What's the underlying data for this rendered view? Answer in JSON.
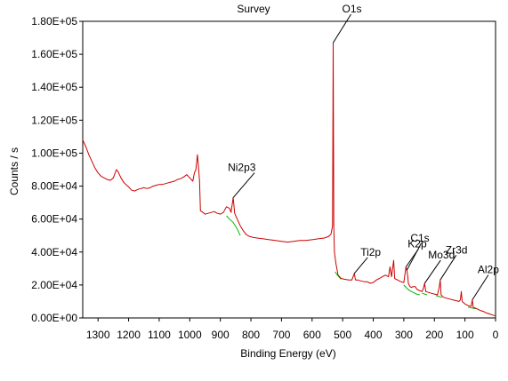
{
  "chart_data": {
    "type": "line",
    "title": "Survey",
    "xlabel": "Binding Energy (eV)",
    "ylabel": "Counts / s",
    "xlim": [
      1350,
      0
    ],
    "ylim": [
      0,
      180000
    ],
    "x_ticks": [
      1300,
      1200,
      1100,
      1000,
      900,
      800,
      700,
      600,
      500,
      400,
      300,
      200,
      100,
      0
    ],
    "x_tick_labels": [
      "1300",
      "1200",
      "1100",
      "1000",
      "900",
      "800",
      "700",
      "600",
      "500",
      "400",
      "300",
      "200",
      "100",
      "0"
    ],
    "y_ticks": [
      0,
      20000,
      40000,
      60000,
      80000,
      100000,
      120000,
      140000,
      160000,
      180000
    ],
    "y_tick_labels": [
      "0.00E+00",
      "2.00E+04",
      "4.00E+04",
      "6.00E+04",
      "8.00E+04",
      "1.00E+05",
      "1.20E+05",
      "1.40E+05",
      "1.60E+05",
      "1.80E+05"
    ],
    "grid": false,
    "colors": {
      "spectrum": "#cc0000",
      "background": "#00bb00"
    },
    "series": [
      {
        "points": [
          [
            1350,
            108000
          ],
          [
            1340,
            104000
          ],
          [
            1330,
            99000
          ],
          [
            1320,
            95000
          ],
          [
            1310,
            91000
          ],
          [
            1300,
            88000
          ],
          [
            1290,
            86000
          ],
          [
            1280,
            85000
          ],
          [
            1270,
            84000
          ],
          [
            1260,
            83500
          ],
          [
            1250,
            85000
          ],
          [
            1240,
            90000
          ],
          [
            1235,
            89000
          ],
          [
            1225,
            85000
          ],
          [
            1215,
            82000
          ],
          [
            1200,
            79500
          ],
          [
            1190,
            77500
          ],
          [
            1180,
            77000
          ],
          [
            1170,
            78000
          ],
          [
            1160,
            78500
          ],
          [
            1150,
            79000
          ],
          [
            1140,
            78500
          ],
          [
            1130,
            79000
          ],
          [
            1120,
            80000
          ],
          [
            1110,
            80500
          ],
          [
            1100,
            81000
          ],
          [
            1090,
            81000
          ],
          [
            1080,
            81500
          ],
          [
            1070,
            82000
          ],
          [
            1060,
            82500
          ],
          [
            1050,
            83000
          ],
          [
            1040,
            84000
          ],
          [
            1030,
            84500
          ],
          [
            1020,
            85500
          ],
          [
            1010,
            87000
          ],
          [
            1000,
            85000
          ],
          [
            990,
            83000
          ],
          [
            985,
            88000
          ],
          [
            980,
            90000
          ],
          [
            975,
            99000
          ],
          [
            972,
            93000
          ],
          [
            968,
            83000
          ],
          [
            965,
            65000
          ],
          [
            960,
            64500
          ],
          [
            950,
            63000
          ],
          [
            940,
            63500
          ],
          [
            930,
            64000
          ],
          [
            920,
            64500
          ],
          [
            910,
            63500
          ],
          [
            900,
            63000
          ],
          [
            890,
            64000
          ],
          [
            880,
            67500
          ],
          [
            870,
            66500
          ],
          [
            865,
            64000
          ],
          [
            858,
            73000
          ],
          [
            853,
            63500
          ],
          [
            845,
            60000
          ],
          [
            835,
            56000
          ],
          [
            825,
            53000
          ],
          [
            815,
            50500
          ],
          [
            805,
            49500
          ],
          [
            795,
            49000
          ],
          [
            780,
            48500
          ],
          [
            760,
            48000
          ],
          [
            740,
            47500
          ],
          [
            720,
            47000
          ],
          [
            700,
            46500
          ],
          [
            680,
            46000
          ],
          [
            660,
            46500
          ],
          [
            640,
            47000
          ],
          [
            620,
            47000
          ],
          [
            600,
            47500
          ],
          [
            580,
            48000
          ],
          [
            560,
            48500
          ],
          [
            545,
            49500
          ],
          [
            538,
            51000
          ],
          [
            533,
            56000
          ],
          [
            531,
            167000
          ],
          [
            529,
            55000
          ],
          [
            527,
            40000
          ],
          [
            522,
            33000
          ],
          [
            515,
            26000
          ],
          [
            505,
            24000
          ],
          [
            495,
            23500
          ],
          [
            480,
            23000
          ],
          [
            470,
            23000
          ],
          [
            462,
            27000
          ],
          [
            458,
            23000
          ],
          [
            450,
            23000
          ],
          [
            440,
            22500
          ],
          [
            430,
            22000
          ],
          [
            420,
            22000
          ],
          [
            410,
            21000
          ],
          [
            400,
            21500
          ],
          [
            390,
            23000
          ],
          [
            380,
            24000
          ],
          [
            370,
            25000
          ],
          [
            360,
            26000
          ],
          [
            350,
            25000
          ],
          [
            345,
            31000
          ],
          [
            340,
            25000
          ],
          [
            333,
            35000
          ],
          [
            330,
            24000
          ],
          [
            320,
            23000
          ],
          [
            310,
            22000
          ],
          [
            300,
            21500
          ],
          [
            293,
            31000
          ],
          [
            290,
            29000
          ],
          [
            287,
            25000
          ],
          [
            285,
            21000
          ],
          [
            280,
            19000
          ],
          [
            275,
            18500
          ],
          [
            270,
            19000
          ],
          [
            262,
            19000
          ],
          [
            258,
            17500
          ],
          [
            248,
            16500
          ],
          [
            240,
            16000
          ],
          [
            236,
            18000
          ],
          [
            232,
            21000
          ],
          [
            228,
            16000
          ],
          [
            220,
            15500
          ],
          [
            210,
            15000
          ],
          [
            200,
            14500
          ],
          [
            190,
            14000
          ],
          [
            184,
            19000
          ],
          [
            181,
            23000
          ],
          [
            178,
            14000
          ],
          [
            170,
            12500
          ],
          [
            160,
            12000
          ],
          [
            150,
            11500
          ],
          [
            140,
            11000
          ],
          [
            130,
            10500
          ],
          [
            120,
            10000
          ],
          [
            115,
            11000
          ],
          [
            112,
            16000
          ],
          [
            109,
            10000
          ],
          [
            100,
            8500
          ],
          [
            90,
            7500
          ],
          [
            80,
            7000
          ],
          [
            76,
            11000
          ],
          [
            73,
            6500
          ],
          [
            60,
            5500
          ],
          [
            50,
            4500
          ],
          [
            40,
            4000
          ],
          [
            30,
            3000
          ],
          [
            20,
            2500
          ],
          [
            10,
            1800
          ],
          [
            0,
            1200
          ]
        ]
      }
    ],
    "background_segments": [
      [
        [
          880,
          62000
        ],
        [
          870,
          60000
        ],
        [
          858,
          58000
        ],
        [
          845,
          54000
        ],
        [
          835,
          50000
        ]
      ],
      [
        [
          525,
          28000
        ],
        [
          515,
          25500
        ],
        [
          505,
          23500
        ]
      ],
      [
        [
          300,
          20000
        ],
        [
          290,
          18000
        ],
        [
          280,
          16500
        ],
        [
          270,
          15500
        ],
        [
          258,
          14500
        ],
        [
          248,
          14000
        ]
      ],
      [
        [
          240,
          15000
        ],
        [
          232,
          14500
        ],
        [
          224,
          14000
        ]
      ],
      [
        [
          195,
          13500
        ],
        [
          184,
          13000
        ],
        [
          175,
          12500
        ]
      ],
      [
        [
          90,
          6500
        ],
        [
          76,
          6000
        ],
        [
          62,
          5500
        ]
      ]
    ],
    "annotations": [
      {
        "label": "O1s",
        "x": 531,
        "y": 167000
      },
      {
        "label": "Ni2p3",
        "x": 858,
        "y": 73000
      },
      {
        "label": "Ti2p",
        "x": 462,
        "y": 27000
      },
      {
        "label": "C1s",
        "x": 290,
        "y": 29000
      },
      {
        "label": "K2p",
        "x": 293,
        "y": 31000
      },
      {
        "label": "Mo3d",
        "x": 232,
        "y": 21000
      },
      {
        "label": "Zr3d",
        "x": 181,
        "y": 23000
      },
      {
        "label": "Al2p",
        "x": 76,
        "y": 11000
      }
    ]
  }
}
